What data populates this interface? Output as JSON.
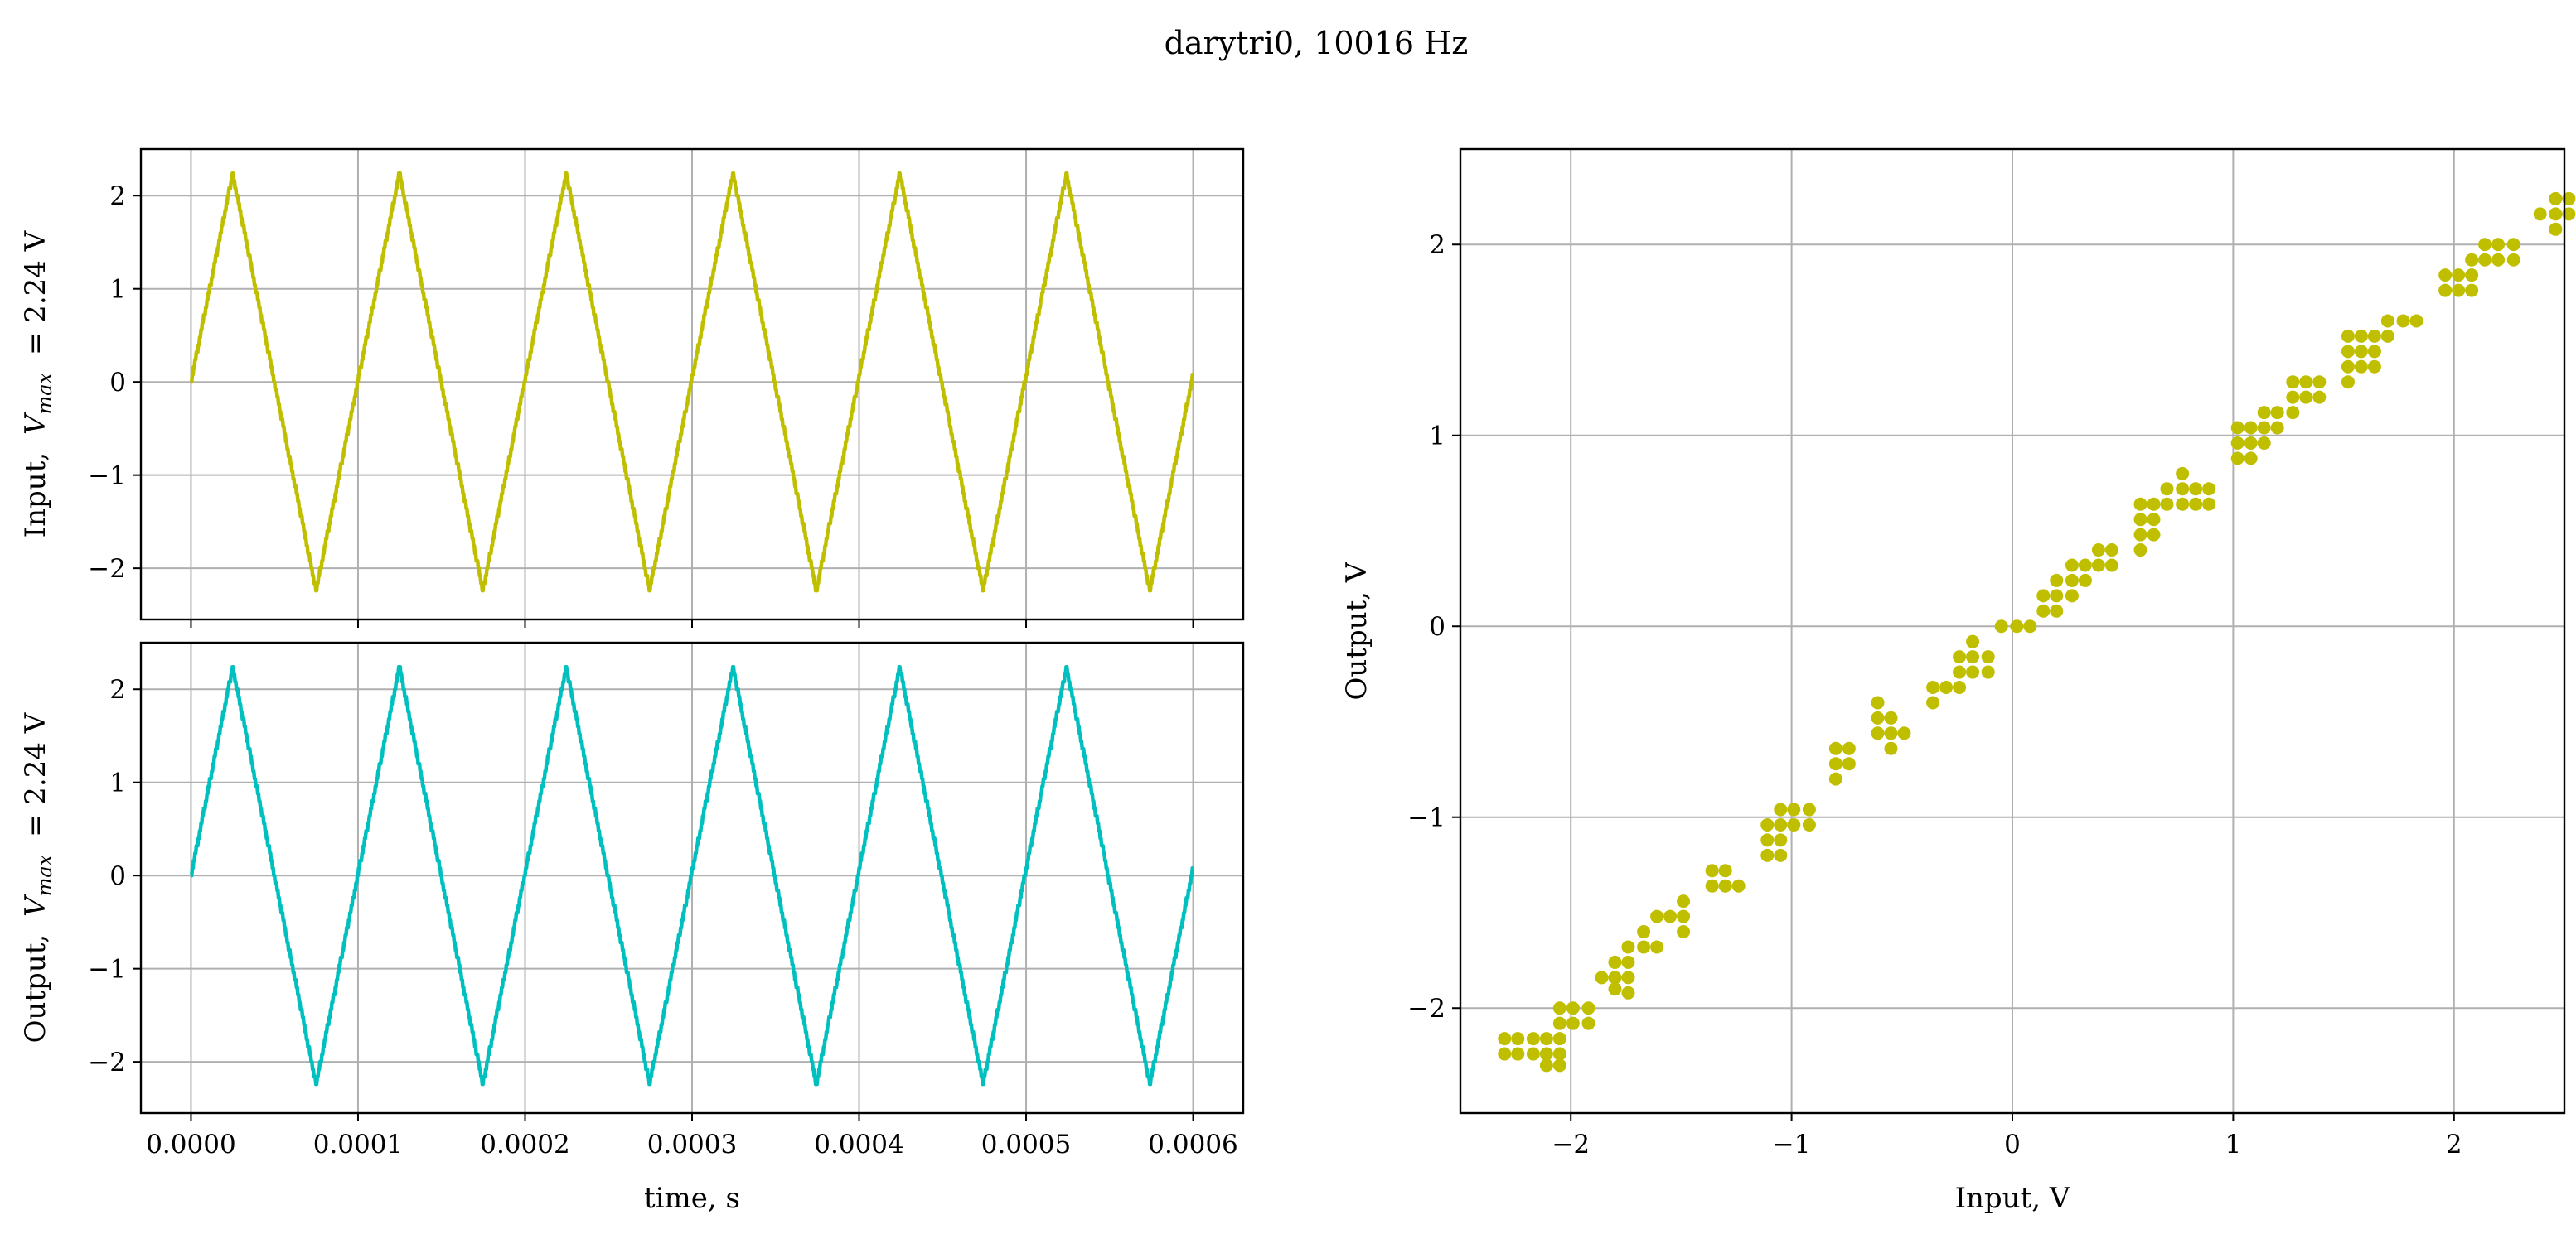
{
  "figure": {
    "title": "darytri0, 10016 Hz"
  },
  "chart_data": [
    {
      "id": "input-time",
      "type": "line",
      "ylabel": "Input, $V_{max}$ = 2.24 V",
      "ylabel_prefix": "Input,",
      "ylabel_v": "V",
      "ylabel_sub": "max",
      "ylabel_suffix": "= 2.24 V",
      "xlabel": "",
      "xlim": [
        -3e-05,
        0.00063
      ],
      "ylim": [
        -2.55,
        2.5
      ],
      "xticks": [
        0,
        0.0001,
        0.0002,
        0.0003,
        0.0004,
        0.0005,
        0.0006
      ],
      "xtick_labels": [],
      "yticks": [
        -2,
        -1,
        0,
        1,
        2
      ],
      "ytick_labels": [
        "−2",
        "−1",
        "0",
        "1",
        "2"
      ],
      "grid": true,
      "series": [
        {
          "color": "#bfbf00",
          "waveform": "triangle",
          "frequency_hz": 10016,
          "amplitude_v": 2.24,
          "x_start": 0,
          "x_end": 0.0006
        }
      ]
    },
    {
      "id": "output-time",
      "type": "line",
      "ylabel": "Output, $V_{max}$ = 2.24 V",
      "ylabel_prefix": "Output,",
      "ylabel_v": "V",
      "ylabel_sub": "max",
      "ylabel_suffix": "= 2.24 V",
      "xlabel": "time, s",
      "xlim": [
        -3e-05,
        0.00063
      ],
      "ylim": [
        -2.55,
        2.5
      ],
      "xticks": [
        0,
        0.0001,
        0.0002,
        0.0003,
        0.0004,
        0.0005,
        0.0006
      ],
      "xtick_labels": [
        "0.0000",
        "0.0001",
        "0.0002",
        "0.0003",
        "0.0004",
        "0.0005",
        "0.0006"
      ],
      "yticks": [
        -2,
        -1,
        0,
        1,
        2
      ],
      "ytick_labels": [
        "−2",
        "−1",
        "0",
        "1",
        "2"
      ],
      "grid": true,
      "series": [
        {
          "color": "#00bfbf",
          "waveform": "triangle",
          "frequency_hz": 10016,
          "amplitude_v": 2.24,
          "x_start": 0,
          "x_end": 0.0006
        }
      ]
    },
    {
      "id": "transfer",
      "type": "scatter",
      "xlabel": "Input, V",
      "ylabel": "Output, V",
      "xlim": [
        -2.5,
        2.5
      ],
      "ylim": [
        -2.55,
        2.5
      ],
      "xticks": [
        -2,
        -1,
        0,
        1,
        2
      ],
      "xtick_labels": [
        "−2",
        "−1",
        "0",
        "1",
        "2"
      ],
      "yticks": [
        -2,
        -1,
        0,
        1,
        2
      ],
      "ytick_labels": [
        "−2",
        "−1",
        "0",
        "1",
        "2"
      ],
      "grid": true,
      "series": [
        {
          "color": "#bfbf00",
          "points": [
            [
              -2.3,
              -2.16
            ],
            [
              -2.3,
              -2.24
            ],
            [
              -2.24,
              -2.16
            ],
            [
              -2.24,
              -2.24
            ],
            [
              -2.17,
              -2.16
            ],
            [
              -2.17,
              -2.24
            ],
            [
              -2.11,
              -2.16
            ],
            [
              -2.11,
              -2.24
            ],
            [
              -2.11,
              -2.3
            ],
            [
              -2.05,
              -2.16
            ],
            [
              -2.05,
              -2.24
            ],
            [
              -2.05,
              -2.3
            ],
            [
              -2.05,
              -2.08
            ],
            [
              -2.05,
              -2.0
            ],
            [
              -1.99,
              -2.0
            ],
            [
              -1.99,
              -2.08
            ],
            [
              -1.92,
              -2.0
            ],
            [
              -1.92,
              -2.08
            ],
            [
              -1.86,
              -1.84
            ],
            [
              -1.8,
              -1.84
            ],
            [
              -1.8,
              -1.76
            ],
            [
              -1.8,
              -1.9
            ],
            [
              -1.74,
              -1.76
            ],
            [
              -1.74,
              -1.84
            ],
            [
              -1.74,
              -1.68
            ],
            [
              -1.74,
              -1.92
            ],
            [
              -1.67,
              -1.6
            ],
            [
              -1.67,
              -1.68
            ],
            [
              -1.61,
              -1.68
            ],
            [
              -1.61,
              -1.52
            ],
            [
              -1.55,
              -1.52
            ],
            [
              -1.49,
              -1.52
            ],
            [
              -1.49,
              -1.44
            ],
            [
              -1.49,
              -1.6
            ],
            [
              -1.36,
              -1.36
            ],
            [
              -1.36,
              -1.28
            ],
            [
              -1.3,
              -1.28
            ],
            [
              -1.3,
              -1.36
            ],
            [
              -1.24,
              -1.36
            ],
            [
              -1.11,
              -1.04
            ],
            [
              -1.11,
              -1.12
            ],
            [
              -1.11,
              -1.2
            ],
            [
              -1.05,
              -1.04
            ],
            [
              -1.05,
              -1.12
            ],
            [
              -1.05,
              -1.2
            ],
            [
              -1.05,
              -0.96
            ],
            [
              -0.99,
              -0.96
            ],
            [
              -0.99,
              -1.04
            ],
            [
              -0.92,
              -0.96
            ],
            [
              -0.92,
              -1.04
            ],
            [
              -0.8,
              -0.72
            ],
            [
              -0.8,
              -0.64
            ],
            [
              -0.8,
              -0.8
            ],
            [
              -0.74,
              -0.64
            ],
            [
              -0.74,
              -0.72
            ],
            [
              -0.61,
              -0.56
            ],
            [
              -0.61,
              -0.48
            ],
            [
              -0.61,
              -0.4
            ],
            [
              -0.55,
              -0.48
            ],
            [
              -0.55,
              -0.56
            ],
            [
              -0.55,
              -0.64
            ],
            [
              -0.49,
              -0.56
            ],
            [
              -0.36,
              -0.32
            ],
            [
              -0.36,
              -0.4
            ],
            [
              -0.3,
              -0.32
            ],
            [
              -0.24,
              -0.24
            ],
            [
              -0.24,
              -0.16
            ],
            [
              -0.24,
              -0.32
            ],
            [
              -0.18,
              -0.16
            ],
            [
              -0.18,
              -0.24
            ],
            [
              -0.18,
              -0.08
            ],
            [
              -0.11,
              -0.16
            ],
            [
              -0.11,
              -0.24
            ],
            [
              -0.05,
              0.0
            ],
            [
              0.02,
              0.0
            ],
            [
              0.08,
              0.0
            ],
            [
              0.14,
              0.08
            ],
            [
              0.14,
              0.16
            ],
            [
              0.2,
              0.16
            ],
            [
              0.2,
              0.08
            ],
            [
              0.2,
              0.24
            ],
            [
              0.27,
              0.24
            ],
            [
              0.27,
              0.16
            ],
            [
              0.27,
              0.32
            ],
            [
              0.33,
              0.24
            ],
            [
              0.33,
              0.32
            ],
            [
              0.39,
              0.32
            ],
            [
              0.39,
              0.4
            ],
            [
              0.45,
              0.32
            ],
            [
              0.45,
              0.4
            ],
            [
              0.58,
              0.48
            ],
            [
              0.58,
              0.56
            ],
            [
              0.58,
              0.64
            ],
            [
              0.58,
              0.4
            ],
            [
              0.64,
              0.48
            ],
            [
              0.64,
              0.56
            ],
            [
              0.64,
              0.64
            ],
            [
              0.7,
              0.64
            ],
            [
              0.7,
              0.72
            ],
            [
              0.77,
              0.64
            ],
            [
              0.77,
              0.72
            ],
            [
              0.77,
              0.8
            ],
            [
              0.83,
              0.64
            ],
            [
              0.83,
              0.72
            ],
            [
              0.89,
              0.64
            ],
            [
              0.89,
              0.72
            ],
            [
              1.02,
              0.88
            ],
            [
              1.02,
              0.96
            ],
            [
              1.02,
              1.04
            ],
            [
              1.08,
              0.88
            ],
            [
              1.08,
              0.96
            ],
            [
              1.08,
              1.04
            ],
            [
              1.14,
              0.96
            ],
            [
              1.14,
              1.04
            ],
            [
              1.14,
              1.12
            ],
            [
              1.2,
              1.04
            ],
            [
              1.2,
              1.12
            ],
            [
              1.27,
              1.12
            ],
            [
              1.27,
              1.2
            ],
            [
              1.27,
              1.28
            ],
            [
              1.33,
              1.2
            ],
            [
              1.33,
              1.28
            ],
            [
              1.39,
              1.2
            ],
            [
              1.39,
              1.28
            ],
            [
              1.52,
              1.28
            ],
            [
              1.52,
              1.36
            ],
            [
              1.52,
              1.44
            ],
            [
              1.52,
              1.52
            ],
            [
              1.58,
              1.36
            ],
            [
              1.58,
              1.44
            ],
            [
              1.58,
              1.52
            ],
            [
              1.64,
              1.36
            ],
            [
              1.64,
              1.44
            ],
            [
              1.64,
              1.52
            ],
            [
              1.7,
              1.52
            ],
            [
              1.7,
              1.6
            ],
            [
              1.77,
              1.6
            ],
            [
              1.83,
              1.6
            ],
            [
              1.96,
              1.76
            ],
            [
              1.96,
              1.84
            ],
            [
              2.02,
              1.76
            ],
            [
              2.02,
              1.84
            ],
            [
              2.08,
              1.76
            ],
            [
              2.08,
              1.92
            ],
            [
              2.08,
              1.84
            ],
            [
              2.14,
              1.92
            ],
            [
              2.14,
              2.0
            ],
            [
              2.2,
              2.0
            ],
            [
              2.2,
              1.92
            ],
            [
              2.27,
              2.0
            ],
            [
              2.27,
              1.92
            ],
            [
              2.39,
              2.16
            ],
            [
              2.46,
              2.16
            ],
            [
              2.46,
              2.24
            ],
            [
              2.46,
              2.08
            ],
            [
              2.52,
              2.16
            ],
            [
              2.52,
              2.24
            ]
          ]
        }
      ]
    }
  ]
}
